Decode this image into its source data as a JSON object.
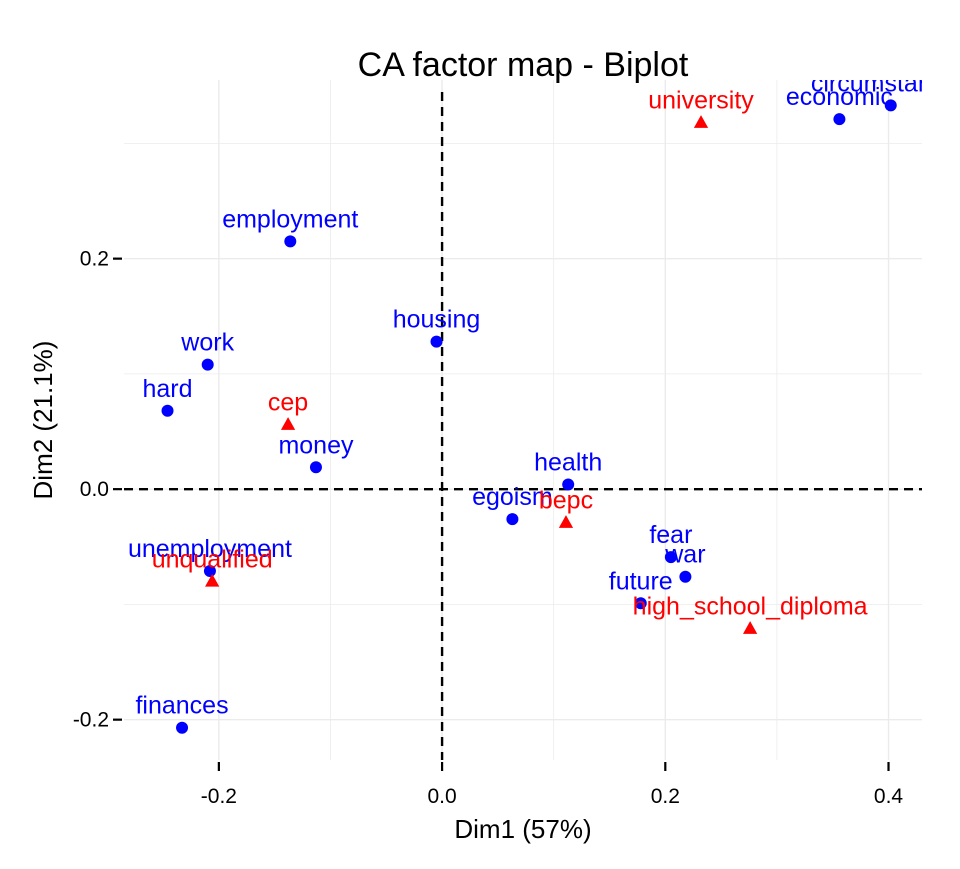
{
  "chart_data": {
    "type": "scatter",
    "title": "CA factor map - Biplot",
    "xlabel": "Dim1 (57%)",
    "ylabel": "Dim2 (21.1%)",
    "xlim": [
      -0.285,
      0.43
    ],
    "ylim": [
      -0.235,
      0.355
    ],
    "x_ticks": [
      -0.2,
      0.0,
      0.2,
      0.4
    ],
    "x_tick_labels": [
      "-0.2",
      "0.0",
      "0.2",
      "0.4"
    ],
    "y_ticks": [
      -0.2,
      0.0,
      0.2
    ],
    "y_tick_labels": [
      "-0.2",
      "0.0",
      "0.2"
    ],
    "grid": true,
    "reference_lines": {
      "x": 0,
      "y": 0,
      "style": "dashed"
    },
    "colors": {
      "rows": "#0000ff",
      "cols": "#ff0000",
      "grid": "#ebebeb"
    },
    "series": [
      {
        "marker": "circle",
        "color": "#0000ff",
        "points": [
          {
            "label": "employment",
            "x": -0.136,
            "y": 0.215
          },
          {
            "label": "work",
            "x": -0.21,
            "y": 0.108
          },
          {
            "label": "hard",
            "x": -0.246,
            "y": 0.068
          },
          {
            "label": "housing",
            "x": -0.005,
            "y": 0.128
          },
          {
            "label": "money",
            "x": -0.113,
            "y": 0.019
          },
          {
            "label": "health",
            "x": 0.113,
            "y": 0.004
          },
          {
            "label": "egoism",
            "x": 0.063,
            "y": -0.026
          },
          {
            "label": "fear",
            "x": 0.205,
            "y": -0.059
          },
          {
            "label": "war",
            "x": 0.218,
            "y": -0.076
          },
          {
            "label": "future",
            "x": 0.178,
            "y": -0.099
          },
          {
            "label": "unemployment",
            "x": -0.208,
            "y": -0.071
          },
          {
            "label": "finances",
            "x": -0.233,
            "y": -0.207
          },
          {
            "label": "economic",
            "x": 0.356,
            "y": 0.321
          },
          {
            "label": "circumstances",
            "x": 0.402,
            "y": 0.333
          }
        ]
      },
      {
        "marker": "triangle",
        "color": "#ff0000",
        "points": [
          {
            "label": "university",
            "x": 0.232,
            "y": 0.318
          },
          {
            "label": "cep",
            "x": -0.138,
            "y": 0.056
          },
          {
            "label": "bepc",
            "x": 0.111,
            "y": -0.029
          },
          {
            "label": "unqualified",
            "x": -0.206,
            "y": -0.08
          },
          {
            "label": "high_school_diploma",
            "x": 0.276,
            "y": -0.121
          }
        ]
      }
    ]
  }
}
